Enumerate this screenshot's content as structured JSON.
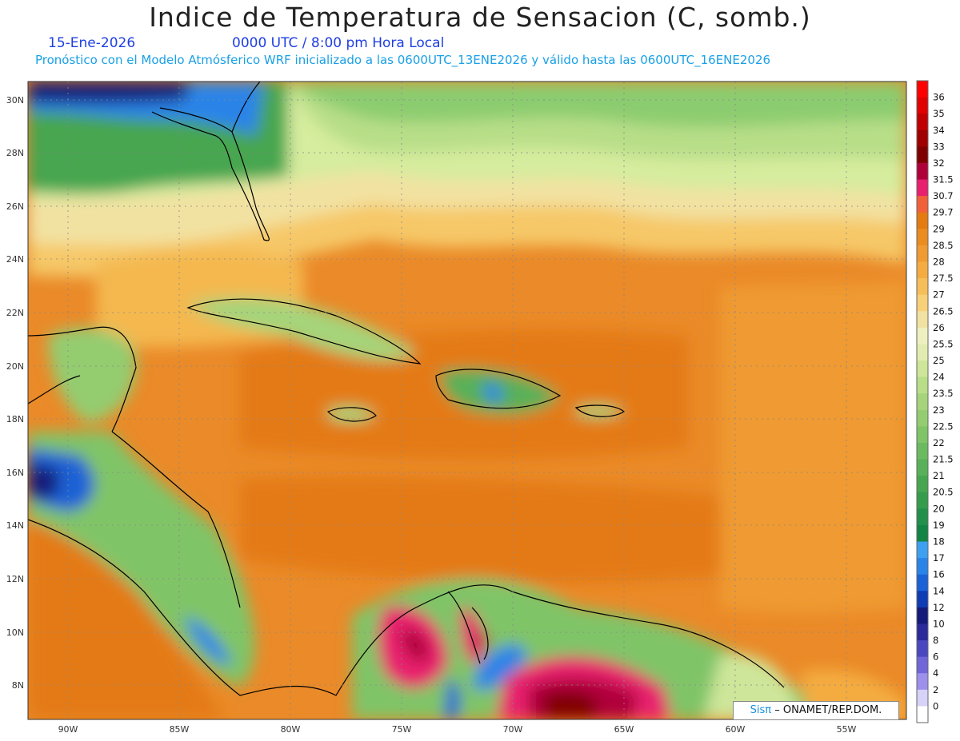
{
  "header": {
    "title": "Indice de Temperatura de Sensacion (C, somb.)",
    "date": "15-Ene-2026",
    "time": "0000 UTC / 8:00 pm Hora Local",
    "model_info": "Pronóstico con el Modelo Atmósferico WRF inicializado a las 0600UTC_13ENE2026 y válido hasta las  0600UTC_16ENE2026"
  },
  "map": {
    "lat_labels": [
      "30N",
      "28N",
      "26N",
      "24N",
      "22N",
      "20N",
      "18N",
      "16N",
      "14N",
      "12N",
      "10N",
      "8N"
    ],
    "lon_labels": [
      "90W",
      "85W",
      "80W",
      "75W",
      "70W",
      "65W",
      "60W",
      "55W"
    ],
    "grid": true,
    "region": "Caribbean"
  },
  "colorbar": {
    "labels": [
      "36",
      "35",
      "34",
      "33",
      "32",
      "31.5",
      "30.7",
      "29.7",
      "29",
      "28.5",
      "28",
      "27.5",
      "27",
      "26.5",
      "26",
      "25.5",
      "25",
      "24",
      "23.5",
      "23",
      "22.5",
      "22",
      "21.5",
      "21",
      "20.5",
      "20",
      "19",
      "18",
      "17",
      "16",
      "14",
      "12",
      "10",
      "8",
      "6",
      "4",
      "2",
      "0"
    ],
    "colors": [
      "#ff0000",
      "#e00000",
      "#c00000",
      "#a00000",
      "#800000",
      "#b0003a",
      "#e8206e",
      "#f2603a",
      "#e47a12",
      "#ea8c1e",
      "#ef9a32",
      "#f4ac40",
      "#f6be58",
      "#f8d078",
      "#f2e2a2",
      "#eef0c0",
      "#e2ecb0",
      "#cde69a",
      "#b8de88",
      "#a6d47a",
      "#94cc70",
      "#80c468",
      "#6cba60",
      "#58b058",
      "#46a650",
      "#359c4c",
      "#22904a",
      "#128444",
      "#3ea0f0",
      "#2a84e8",
      "#1a62d6",
      "#0e3cb4",
      "#141a7a",
      "#2a2a9a",
      "#4a48c0",
      "#7066d8",
      "#9c90ec",
      "#d6d2f8",
      "#ffffff"
    ]
  },
  "credit": {
    "logo": "Sisπ",
    "text": "– ONAMET/REP.DOM."
  }
}
